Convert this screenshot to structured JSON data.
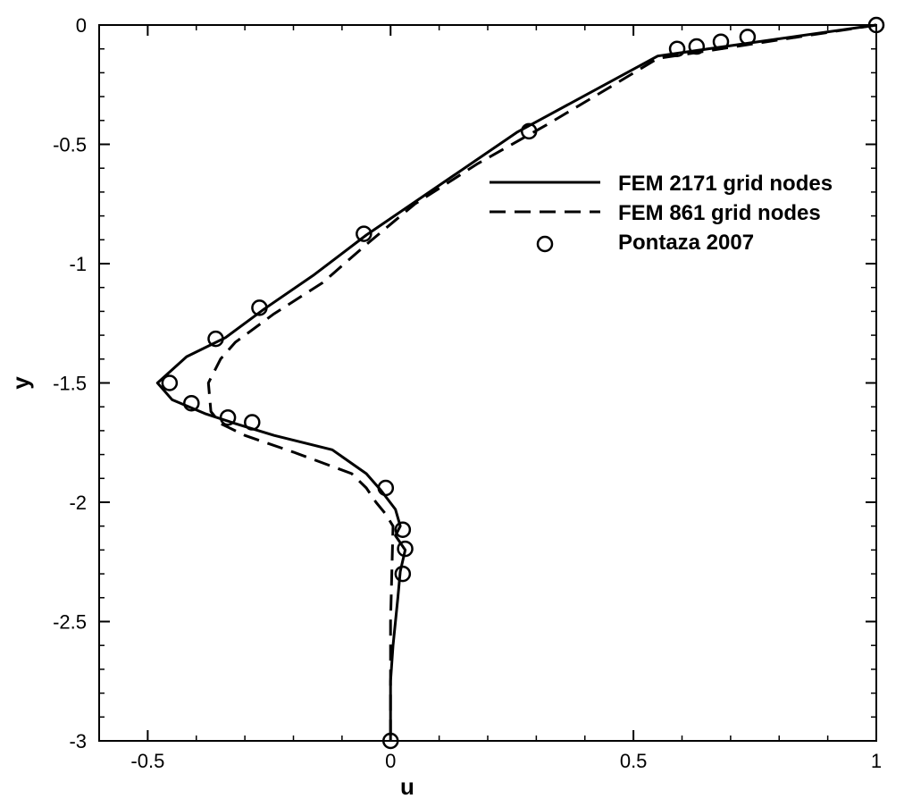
{
  "chart_data": {
    "type": "line",
    "title": "",
    "xlabel": "u",
    "ylabel": "y",
    "xlim": [
      -0.6,
      1.0
    ],
    "ylim": [
      -3.0,
      0.0
    ],
    "grid": false,
    "legend_position": "upper-right inside plot",
    "xticks": [
      -0.5,
      0,
      0.5,
      1
    ],
    "xtick_labels": [
      "-0.5",
      "0",
      "0.5",
      "1"
    ],
    "yticks": [
      0,
      -0.5,
      -1,
      -1.5,
      -2,
      -2.5,
      -3
    ],
    "ytick_labels": [
      "0",
      "-0.5",
      "-1",
      "-1.5",
      "-2",
      "-2.5",
      "-3"
    ],
    "series": [
      {
        "name": "FEM 2171 grid nodes",
        "style": "solid",
        "color": "#000000",
        "x": [
          1.0,
          0.55,
          0.26,
          0.08,
          -0.05,
          -0.16,
          -0.26,
          -0.34,
          -0.42,
          -0.48,
          -0.45,
          -0.38,
          -0.32,
          -0.24,
          -0.12,
          -0.05,
          -0.02,
          0.01,
          0.02,
          0.01,
          0.03,
          0.02,
          0.015,
          0.01,
          0.005,
          0.0,
          0.0
        ],
        "y": [
          0.0,
          -0.13,
          -0.45,
          -0.7,
          -0.88,
          -1.05,
          -1.19,
          -1.31,
          -1.39,
          -1.5,
          -1.57,
          -1.63,
          -1.67,
          -1.72,
          -1.78,
          -1.88,
          -1.95,
          -2.03,
          -2.1,
          -2.14,
          -2.2,
          -2.29,
          -2.4,
          -2.5,
          -2.6,
          -2.75,
          -3.0
        ],
        "show_line": true,
        "show_markers": false
      },
      {
        "name": "FEM 861 grid nodes",
        "style": "dashed",
        "color": "#000000",
        "x": [
          1.0,
          0.55,
          0.46,
          0.32,
          0.18,
          0.05,
          -0.05,
          -0.14,
          -0.24,
          -0.32,
          -0.35,
          -0.375,
          -0.37,
          -0.35,
          -0.3,
          -0.2,
          -0.08,
          -0.05,
          -0.03,
          -0.01,
          0.005,
          0.0,
          0.0
        ],
        "y": [
          0.0,
          -0.14,
          -0.25,
          -0.42,
          -0.58,
          -0.75,
          -0.92,
          -1.08,
          -1.21,
          -1.33,
          -1.4,
          -1.5,
          -1.62,
          -1.67,
          -1.72,
          -1.79,
          -1.88,
          -1.94,
          -2.0,
          -2.05,
          -2.1,
          -2.5,
          -3.0
        ],
        "show_line": true,
        "show_markers": false
      },
      {
        "name": "Pontaza 2007",
        "style": "markers",
        "marker": "open-circle",
        "color": "#000000",
        "x": [
          1.0,
          0.735,
          0.68,
          0.63,
          0.59,
          0.285,
          -0.055,
          -0.27,
          -0.36,
          -0.455,
          -0.41,
          -0.335,
          -0.285,
          -0.01,
          0.025,
          0.03,
          0.025,
          0.0
        ],
        "y": [
          0.0,
          -0.05,
          -0.07,
          -0.09,
          -0.1,
          -0.445,
          -0.875,
          -1.185,
          -1.315,
          -1.5,
          -1.585,
          -1.645,
          -1.665,
          -1.94,
          -2.115,
          -2.195,
          -2.3,
          -3.0
        ],
        "show_line": false,
        "show_markers": true
      }
    ]
  }
}
